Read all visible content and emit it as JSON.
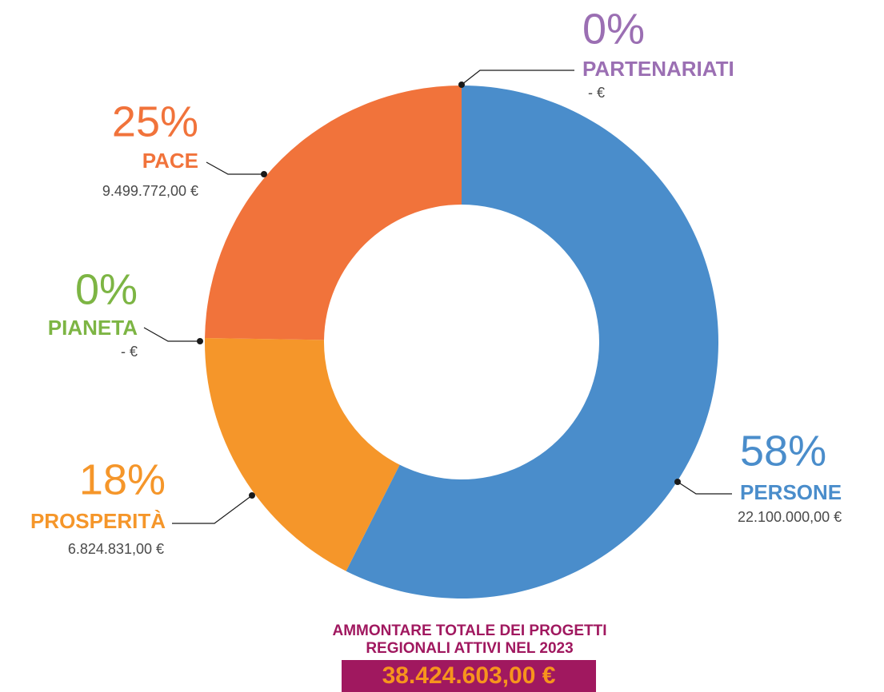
{
  "chart_data": {
    "type": "donut",
    "categories": [
      "PERSONE",
      "PROSPERITÀ",
      "PIANETA",
      "PACE",
      "PARTENARIATI"
    ],
    "values": [
      58,
      18,
      0,
      25,
      0
    ],
    "value_labels": [
      "58%",
      "18%",
      "0%",
      "25%",
      "0%"
    ],
    "amount_labels": [
      "22.100.000,00 €",
      "6.824.831,00 €",
      "- €",
      "9.499.772,00 €",
      "- €"
    ],
    "colors": [
      "#4a8dcb",
      "#f5962a",
      "#7db544",
      "#f1733b",
      "#9b6fb3"
    ],
    "total_title": [
      "AMMONTARE TOTALE DEI PROGETTI",
      "REGIONALI ATTIVI NEL 2023"
    ],
    "total_value": "38.424.603,00 €"
  }
}
